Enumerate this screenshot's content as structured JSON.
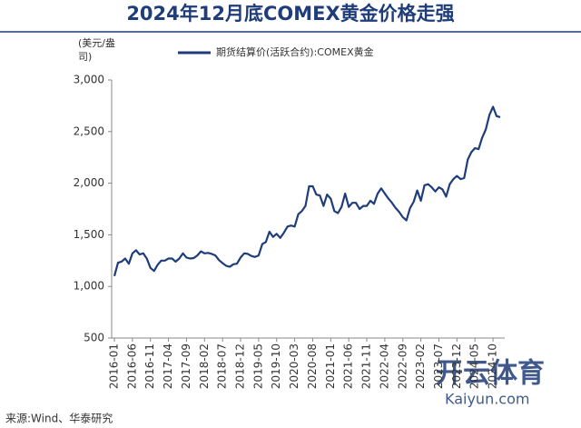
{
  "chart_data": {
    "type": "line",
    "title": "2024年12月底COMEX黄金价格走强",
    "y_label": "(美元/盎司)",
    "source": "来源:Wind、华泰研究",
    "x": [
      "2016-01",
      null,
      null,
      null,
      null,
      "2016-06",
      null,
      null,
      null,
      null,
      "2016-11",
      null,
      null,
      null,
      null,
      "2017-04",
      null,
      null,
      null,
      null,
      "2017-09",
      null,
      null,
      null,
      null,
      "2018-02",
      null,
      null,
      null,
      null,
      "2018-07",
      null,
      null,
      null,
      null,
      "2018-12",
      null,
      null,
      null,
      null,
      "2019-05",
      null,
      null,
      null,
      null,
      "2019-10",
      null,
      null,
      null,
      null,
      "2020-03",
      null,
      null,
      null,
      null,
      "2020-08",
      null,
      null,
      null,
      null,
      "2021-01",
      null,
      null,
      null,
      null,
      "2021-06",
      null,
      null,
      null,
      null,
      "2021-11",
      null,
      null,
      null,
      null,
      "2022-04",
      null,
      null,
      null,
      null,
      "2022-09",
      null,
      null,
      null,
      null,
      "2023-02",
      null,
      null,
      null,
      null,
      "2023-07",
      null,
      null,
      null,
      null,
      "2023-12",
      null,
      null,
      null,
      null,
      "2024-05",
      null,
      null,
      null,
      null,
      "2024-10",
      null,
      null
    ],
    "series": [
      {
        "name": "期货结算价(活跃合约):COMEX黄金",
        "color": "#1f3d7a",
        "values": [
          1100,
          1230,
          1240,
          1270,
          1220,
          1320,
          1350,
          1310,
          1320,
          1270,
          1180,
          1150,
          1210,
          1250,
          1250,
          1270,
          1270,
          1240,
          1270,
          1320,
          1280,
          1270,
          1275,
          1300,
          1340,
          1320,
          1325,
          1315,
          1300,
          1255,
          1225,
          1200,
          1190,
          1215,
          1220,
          1280,
          1320,
          1315,
          1295,
          1285,
          1300,
          1410,
          1430,
          1530,
          1480,
          1510,
          1470,
          1520,
          1580,
          1590,
          1580,
          1700,
          1730,
          1780,
          1970,
          1970,
          1890,
          1880,
          1780,
          1890,
          1850,
          1730,
          1710,
          1770,
          1900,
          1770,
          1810,
          1810,
          1750,
          1780,
          1780,
          1830,
          1800,
          1900,
          1950,
          1900,
          1850,
          1810,
          1760,
          1720,
          1670,
          1640,
          1760,
          1820,
          1930,
          1830,
          1980,
          1990,
          1960,
          1920,
          1960,
          1940,
          1870,
          1990,
          2040,
          2070,
          2040,
          2050,
          2230,
          2300,
          2340,
          2330,
          2440,
          2520,
          2660,
          2740,
          2650,
          2640
        ]
      }
    ],
    "ylim": [
      500,
      3000
    ],
    "yticks": [
      500,
      {
        "value": 1000,
        "label": "1,000"
      },
      {
        "value": 1500,
        "label": "1,500"
      },
      {
        "value": 2000,
        "label": "2,000"
      },
      {
        "value": 2500,
        "label": "2,500"
      },
      {
        "value": 3000,
        "label": "3,000"
      }
    ],
    "legend": "top"
  },
  "watermark": {
    "name": "开云体育",
    "url": "Kaiyun.com"
  }
}
